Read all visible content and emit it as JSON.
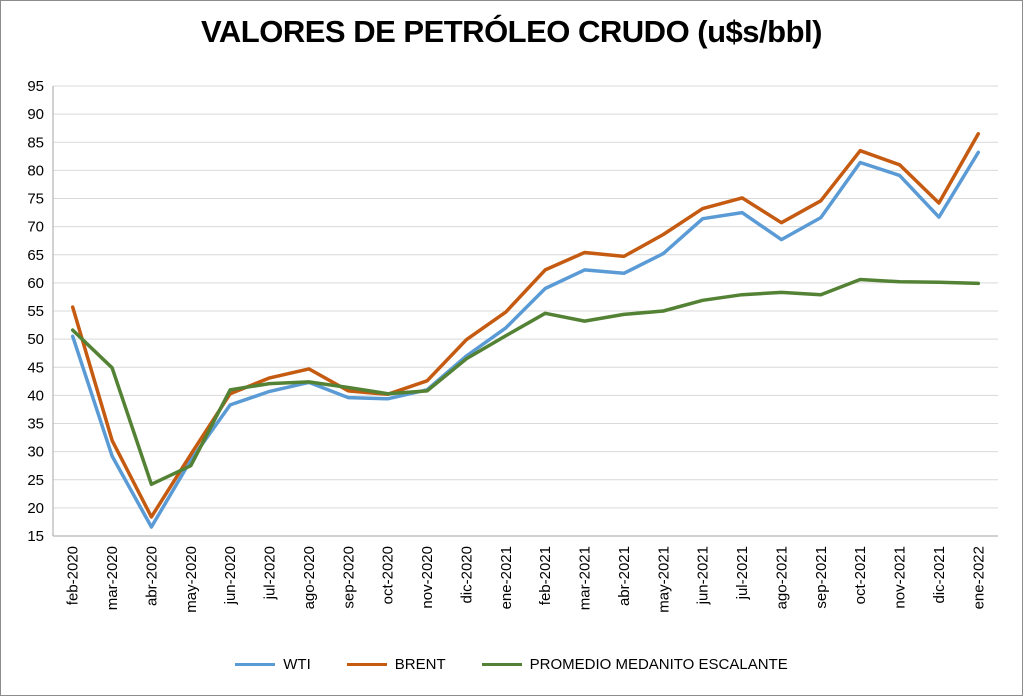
{
  "chart_data": {
    "type": "line",
    "title": "VALORES DE PETRÓLEO CRUDO (u$s/bbl)",
    "xlabel": "",
    "ylabel": "",
    "ylim": [
      15,
      95
    ],
    "ytick_step": 5,
    "grid": true,
    "legend_position": "bottom",
    "categories": [
      "feb-2020",
      "mar-2020",
      "abr-2020",
      "may-2020",
      "jun-2020",
      "jul-2020",
      "ago-2020",
      "sep-2020",
      "oct-2020",
      "nov-2020",
      "dic-2020",
      "ene-2021",
      "feb-2021",
      "mar-2021",
      "abr-2021",
      "may-2021",
      "jun-2021",
      "jul-2021",
      "ago-2021",
      "sep-2021",
      "oct-2021",
      "nov-2021",
      "dic-2021",
      "ene-2022"
    ],
    "series": [
      {
        "name": "WTI",
        "color": "#5b9bd5",
        "values": [
          50.5,
          29.2,
          16.6,
          28.5,
          38.3,
          40.7,
          42.3,
          39.6,
          39.4,
          41.0,
          47.0,
          52.0,
          59.0,
          62.3,
          61.7,
          65.2,
          71.4,
          72.5,
          67.7,
          71.6,
          81.4,
          79.1,
          71.7,
          83.2
        ]
      },
      {
        "name": "BRENT",
        "color": "#c55a11",
        "values": [
          55.7,
          32.0,
          18.4,
          29.5,
          40.3,
          43.1,
          44.7,
          40.8,
          40.2,
          42.6,
          49.9,
          54.8,
          62.3,
          65.4,
          64.7,
          68.6,
          73.2,
          75.1,
          70.7,
          74.6,
          83.5,
          81.0,
          74.2,
          86.5
        ]
      },
      {
        "name": "PROMEDIO MEDANITO ESCALANTE",
        "color": "#548235",
        "values": [
          51.6,
          44.9,
          24.2,
          27.5,
          41.0,
          42.1,
          42.4,
          41.4,
          40.3,
          40.8,
          46.5,
          50.6,
          54.6,
          53.2,
          54.4,
          55.0,
          56.9,
          57.9,
          58.3,
          57.9,
          60.6,
          60.2,
          60.1,
          59.9
        ]
      }
    ]
  }
}
